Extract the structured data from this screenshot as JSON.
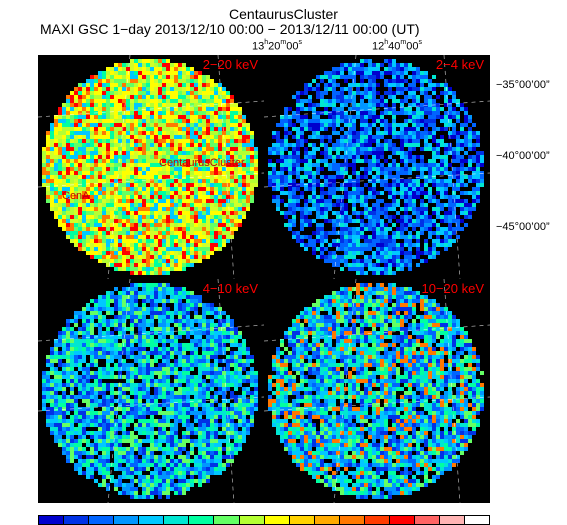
{
  "title": "CentaurusCluster",
  "subtitle": "MAXI GSC 1−day 2013/12/10 00:00 − 2013/12/11 00:00 (UT)",
  "ra_labels": [
    {
      "h": "13",
      "m": "20",
      "s": "00"
    },
    {
      "h": "12",
      "m": "40",
      "s": "00"
    }
  ],
  "dec_labels": [
    "−35°00’00”",
    "−40°00’00”",
    "−45°00’00”"
  ],
  "panels": [
    {
      "band": "2−20 keV",
      "intensity": "high",
      "palette": "yellow"
    },
    {
      "band": "2−4 keV",
      "intensity": "low",
      "palette": "blue"
    },
    {
      "band": "4−10 keV",
      "intensity": "mid",
      "palette": "cyan"
    },
    {
      "band": "10−20 keV",
      "intensity": "mid",
      "palette": "blue-cyan"
    }
  ],
  "sources": [
    {
      "label": "CentaurusCluster"
    },
    {
      "label": "CenA"
    }
  ],
  "colorbar": [
    "#0000cd",
    "#0032e6",
    "#0064ff",
    "#0096ff",
    "#00c8ff",
    "#00e6d2",
    "#00ffa0",
    "#64ff64",
    "#b4ff32",
    "#ffff00",
    "#ffd200",
    "#ffaa00",
    "#ff7800",
    "#ff3c00",
    "#ff0000",
    "#ff6464",
    "#ffb4b4",
    "#ffffff"
  ]
}
